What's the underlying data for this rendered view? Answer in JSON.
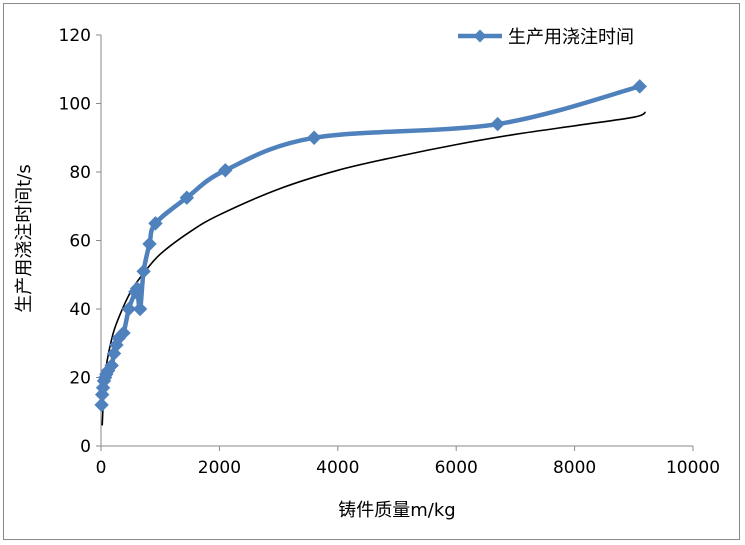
{
  "chart_data": {
    "type": "line",
    "xlabel": "铸件质量m/kg",
    "ylabel": "生产用浇注时间t/s",
    "xlim": [
      0,
      10000
    ],
    "ylim": [
      0,
      120
    ],
    "xticks": [
      0,
      2000,
      4000,
      6000,
      8000,
      10000
    ],
    "yticks": [
      0,
      20,
      40,
      60,
      80,
      100,
      120
    ],
    "grid": false,
    "legend_position": "top-right",
    "series": [
      {
        "name": "生产用浇注时间",
        "style": "line-with-diamond-markers",
        "color": "#4F81BD",
        "x": [
          10,
          20,
          35,
          50,
          70,
          90,
          120,
          180,
          220,
          260,
          300,
          380,
          470,
          580,
          610,
          660,
          720,
          820,
          920,
          1450,
          2100,
          3600,
          6700,
          9100
        ],
        "y": [
          12,
          15,
          17,
          19,
          20,
          21,
          22,
          23.5,
          27,
          29.5,
          31.5,
          33,
          40,
          45,
          46,
          40,
          51,
          59,
          65,
          72.5,
          80.5,
          90,
          94,
          105
        ]
      },
      {
        "name": "",
        "style": "trend-line",
        "color": "#000000",
        "x": [
          20,
          50,
          100,
          200,
          300,
          500,
          700,
          1000,
          1500,
          2000,
          3000,
          4000,
          5000,
          6000,
          7000,
          8000,
          9000,
          9200
        ],
        "y": [
          6,
          16.5,
          24.5,
          32.5,
          37.5,
          45,
          50,
          56,
          62.5,
          67.5,
          75,
          80.5,
          84.5,
          88,
          91,
          93.5,
          96,
          97.5
        ]
      }
    ]
  }
}
